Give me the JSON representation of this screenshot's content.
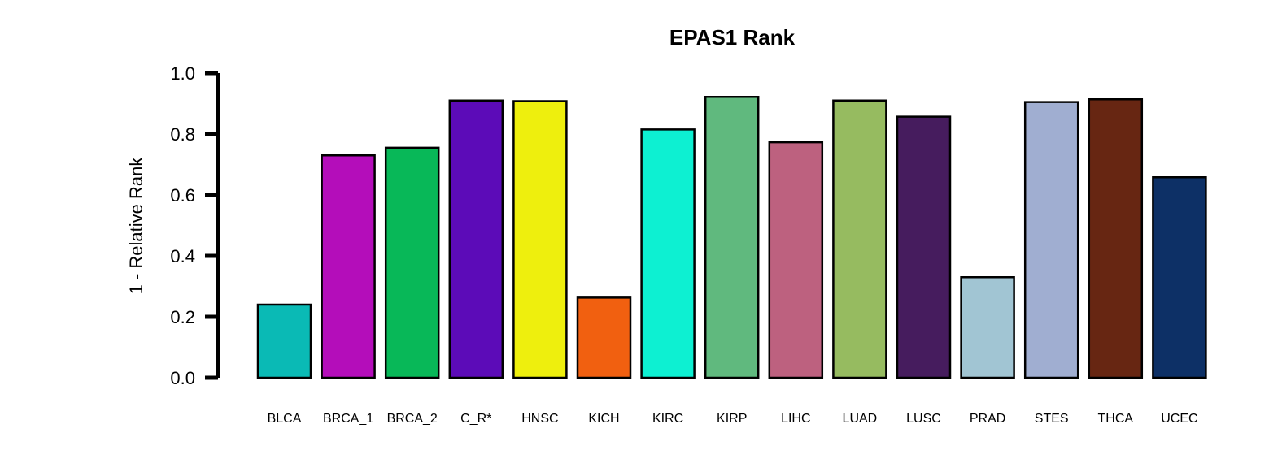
{
  "chart_data": {
    "type": "bar",
    "title": "EPAS1 Rank",
    "xlabel": "",
    "ylabel": "1 - Relative Rank",
    "ylim": [
      0,
      1.0
    ],
    "yticks": [
      "0.0",
      "0.2",
      "0.4",
      "0.6",
      "0.8",
      "1.0"
    ],
    "grid": false,
    "legend": "none",
    "categories": [
      "BLCA",
      "BRCA_1",
      "BRCA_2",
      "C_R*",
      "HNSC",
      "KICH",
      "KIRC",
      "KIRP",
      "LIHC",
      "LUAD",
      "LUSC",
      "PRAD",
      "STES",
      "THCA",
      "UCEC"
    ],
    "values": [
      0.24,
      0.73,
      0.755,
      0.91,
      0.908,
      0.263,
      0.815,
      0.922,
      0.773,
      0.91,
      0.857,
      0.33,
      0.905,
      0.914,
      0.658
    ],
    "colors": [
      "#0ABAB5",
      "#B40DBA",
      "#08B858",
      "#5C0BB8",
      "#EEEF0D",
      "#F16010",
      "#0DF0D2",
      "#60B97E",
      "#BD617F",
      "#96BB60",
      "#461C5E",
      "#A1C5D3",
      "#A0AED1",
      "#672612",
      "#0D3066"
    ]
  }
}
